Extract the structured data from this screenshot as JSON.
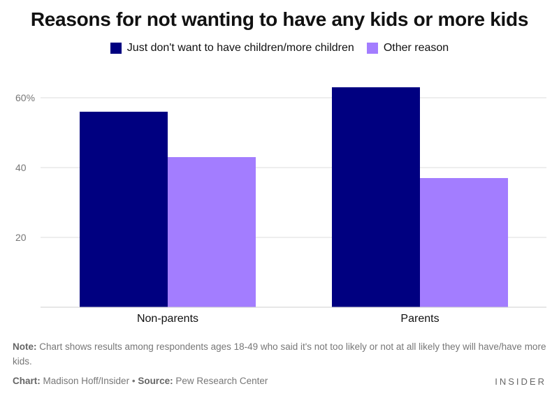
{
  "colors": {
    "series1": "#000080",
    "series2": "#a37dff"
  },
  "note": {
    "label": "Note:",
    "text": " Chart shows results among respondents ages 18-49 who said it's not too likely or not at all likely they will have/have more kids."
  },
  "credit": {
    "chart_label": "Chart:",
    "chart_text": " Madison Hoff/Insider",
    "bullet": " • ",
    "source_label": "Source:",
    "source_text": " Pew Research Center"
  },
  "brand": "INSIDER",
  "chart_data": {
    "type": "bar",
    "title": "Reasons for not wanting to have any kids or more kids",
    "categories": [
      "Non-parents",
      "Parents"
    ],
    "series": [
      {
        "name": "Just don't want to have children/more children",
        "values": [
          56,
          63
        ]
      },
      {
        "name": "Other reason",
        "values": [
          43,
          37
        ]
      }
    ],
    "yticks": [
      20,
      40,
      60
    ],
    "ytick_labels": [
      "20",
      "40",
      "60%"
    ],
    "ylim": [
      0,
      66
    ],
    "xlabel": "",
    "ylabel": "",
    "legend": "top-center",
    "grid": true
  }
}
